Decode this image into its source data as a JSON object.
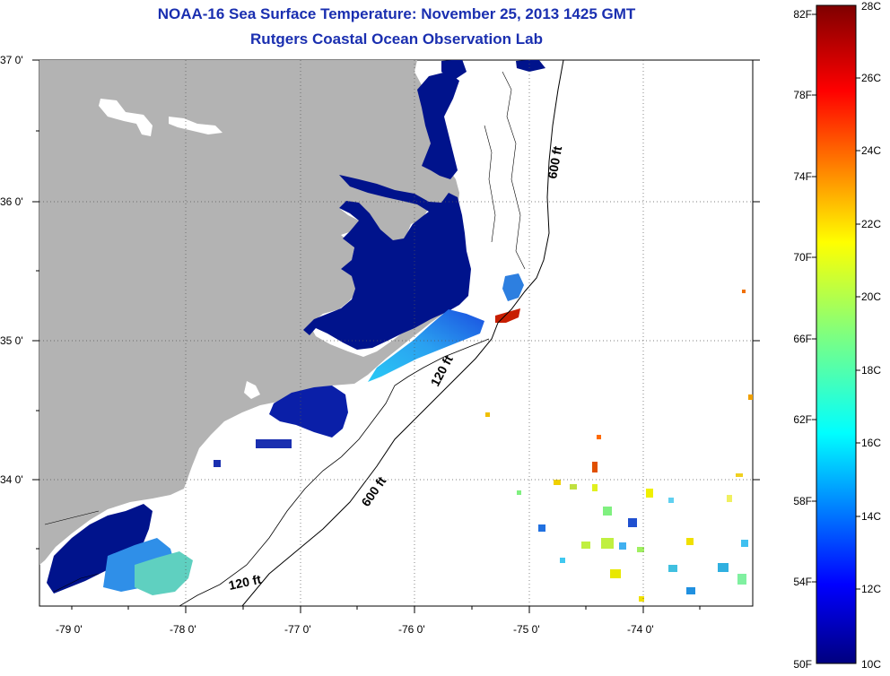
{
  "header": {
    "title": "NOAA-16 Sea Surface Temperature:  November 25, 2013 1425 GMT",
    "subtitle": "Rutgers Coastal Ocean Observation Lab"
  },
  "map": {
    "lat_labels": [
      "37 0'",
      "36 0'",
      "35 0'",
      "34 0'"
    ],
    "lon_labels": [
      "-79 0'",
      "-78 0'",
      "-77 0'",
      "-76 0'",
      "-75 0'",
      "-74 0'"
    ],
    "contour_labels": [
      "600 ft",
      "120 ft",
      "600 ft",
      "120 ft"
    ],
    "colors": {
      "land": "#b3b3b3",
      "cold": "#00138c",
      "warm": "#bf0000"
    }
  },
  "colorbar": {
    "f_labels": [
      "82F",
      "78F",
      "74F",
      "70F",
      "66F",
      "62F",
      "58F",
      "54F",
      "50F"
    ],
    "c_labels": [
      "28C",
      "26C",
      "24C",
      "22C",
      "20C",
      "18C",
      "16C",
      "14C",
      "12C",
      "10C"
    ]
  }
}
